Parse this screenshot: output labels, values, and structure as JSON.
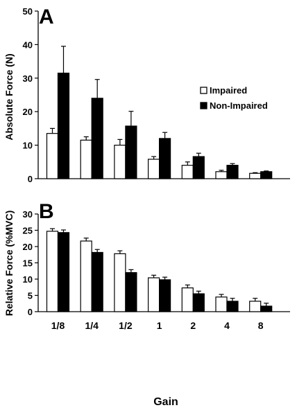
{
  "colors": {
    "impaired_fill": "#ffffff",
    "non_impaired_fill": "#000000",
    "stroke": "#000000",
    "background": "#ffffff"
  },
  "xlabel": "Gain",
  "chart_data": [
    {
      "panel": "A",
      "type": "bar",
      "title": "",
      "ylabel": "Absolute Force (N)",
      "xlabel": "",
      "ylim": [
        0,
        50
      ],
      "yticks": [
        0,
        10,
        20,
        30,
        40,
        50
      ],
      "grid": false,
      "legend_position": "right",
      "categories": [
        "1/8",
        "1/4",
        "1/2",
        "1",
        "2",
        "4",
        "8"
      ],
      "series": [
        {
          "name": "Impaired",
          "fill": "#ffffff",
          "values": [
            13.5,
            11.5,
            10,
            5.8,
            4,
            2.1,
            1.6
          ],
          "errors": [
            1.5,
            1,
            1.7,
            0.8,
            1,
            0.4,
            0.2
          ]
        },
        {
          "name": "Non-Impaired",
          "fill": "#000000",
          "values": [
            31.5,
            24,
            15.7,
            12,
            6.6,
            4,
            2.1
          ],
          "errors": [
            8,
            5.6,
            4.4,
            1.8,
            1,
            0.5,
            0.2
          ]
        }
      ]
    },
    {
      "panel": "B",
      "type": "bar",
      "title": "",
      "ylabel": "Relative Force (%MVC)",
      "xlabel": "Gain",
      "ylim": [
        0,
        30
      ],
      "yticks": [
        0,
        5,
        10,
        15,
        20,
        25,
        30
      ],
      "grid": false,
      "categories": [
        "1/8",
        "1/4",
        "1/2",
        "1",
        "2",
        "4",
        "8"
      ],
      "series": [
        {
          "fill": "#ffffff",
          "values": [
            24.7,
            21.7,
            17.8,
            10.4,
            7.3,
            4.5,
            3.2
          ],
          "errors": [
            0.8,
            0.9,
            0.9,
            0.8,
            0.9,
            0.8,
            0.9
          ]
        },
        {
          "fill": "#000000",
          "values": [
            24.3,
            18.2,
            12,
            9.8,
            5.5,
            3.2,
            1.7
          ],
          "errors": [
            0.8,
            0.9,
            0.9,
            0.8,
            0.8,
            0.9,
            0.9
          ]
        }
      ]
    }
  ]
}
